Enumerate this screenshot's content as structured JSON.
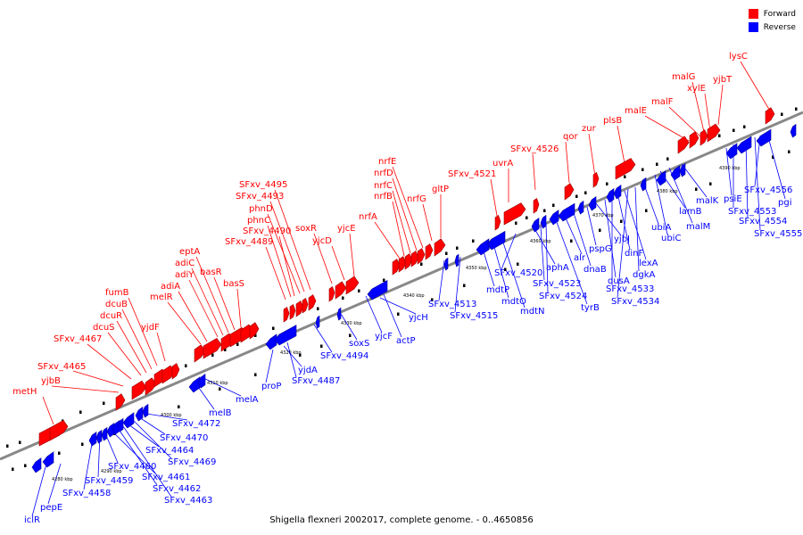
{
  "legend": {
    "forward_label": "Forward",
    "reverse_label": "Reverse",
    "forward_color": "#ff0000",
    "reverse_color": "#0000ff"
  },
  "caption": "Shigella flexneri 2002017, complete genome. - 0..4650856",
  "chart_data": {
    "type": "genome-map",
    "backbone_color": "#888888",
    "tick_labels": [
      "4280 kbp",
      "4290 kbp",
      "4300 kbp",
      "4310 kbp",
      "4320 kbp",
      "4330 kbp",
      "4340 kbp",
      "4350 kbp",
      "4360 kbp",
      "4370 kbp",
      "4380 kbp",
      "4390 kbp"
    ],
    "forward_labels": [
      "metH",
      "yjbB",
      "SFxv_4465",
      "SFxv_4467",
      "dcuS",
      "dcuR",
      "dcuB",
      "fumB",
      "yjdF",
      "melR",
      "adiA",
      "adiY",
      "adiC",
      "eptA",
      "basR",
      "basS",
      "SFxv_4489",
      "phnC",
      "SFxv_4490",
      "phnD",
      "SFxv_4493",
      "SFxv_4495",
      "soxR",
      "yjcD",
      "yjcE",
      "nrfA",
      "nrfB",
      "nrfC",
      "nrfD",
      "nrfE",
      "nrfG",
      "gltP",
      "SFxv_4521",
      "uvrA",
      "SFxv_4526",
      "qor",
      "zur",
      "plsB",
      "malE",
      "malF",
      "malG",
      "xylE",
      "yjbT",
      "lysC"
    ],
    "reverse_labels": [
      "iclR",
      "pepE",
      "SFxv_4458",
      "SFxv_4459",
      "SFxv_4460",
      "SFxv_4461",
      "SFxv_4462",
      "SFxv_4463",
      "SFxv_4464",
      "SFxv_4469",
      "SFxv_4470",
      "SFxv_4472",
      "melB",
      "melA",
      "proP",
      "yjdA",
      "SFxv_4487",
      "SFxv_4494",
      "soxS",
      "yjcF",
      "actP",
      "yjcH",
      "SFxv_4513",
      "SFxv_4515",
      "mdtP",
      "mdtO",
      "mdtN",
      "SFxv_4520",
      "aphA",
      "SFxv_4523",
      "SFxv_4524",
      "tyrB",
      "alr",
      "dnaB",
      "pspG",
      "yjbJ",
      "dusA",
      "SFxv_4533",
      "dinF",
      "lexA",
      "SFxv_4534",
      "dgkA",
      "ubiA",
      "ubiC",
      "lamB",
      "malM",
      "malK",
      "psiE",
      "SFxv_4553",
      "SFxv_4554",
      "SFxv_4555",
      "SFxv_4556",
      "pgi"
    ]
  }
}
